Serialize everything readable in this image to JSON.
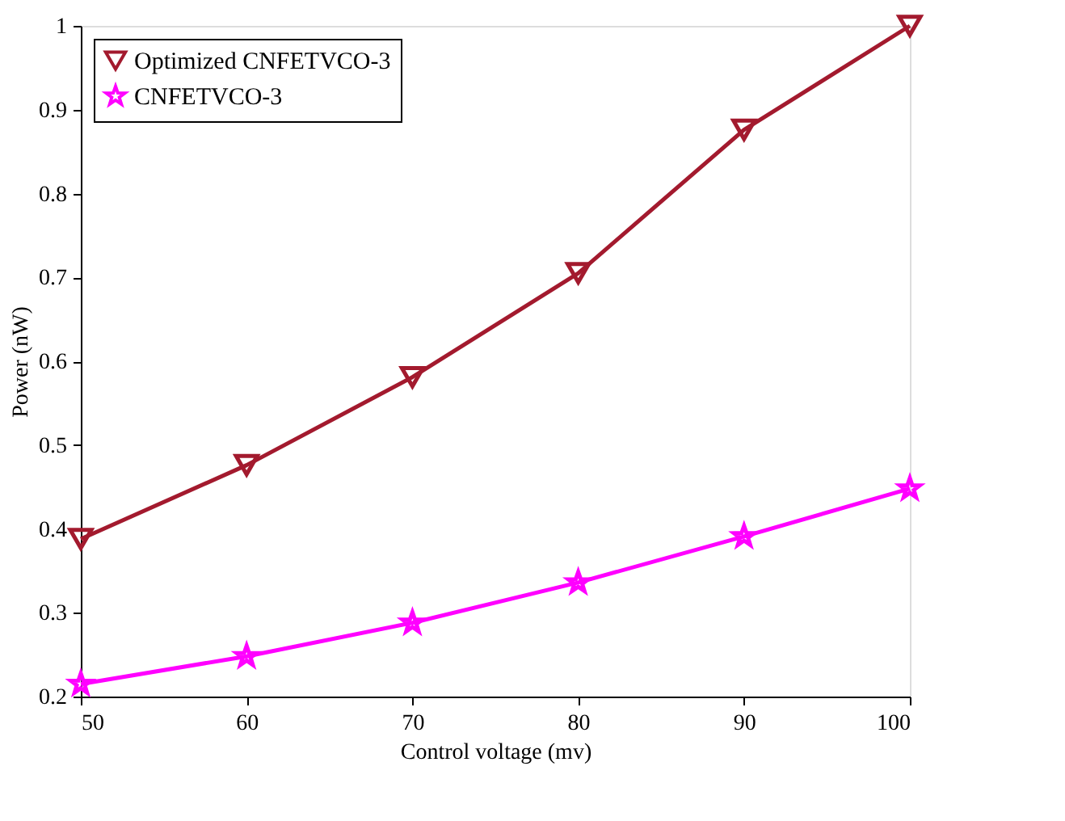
{
  "chart_data": {
    "type": "line",
    "xlabel": "Control voltage (mv)",
    "ylabel": "Power (nW)",
    "x": [
      50,
      60,
      70,
      80,
      90,
      100
    ],
    "series": [
      {
        "name": "Optimized CNFETVCO-3",
        "color": "#a31a2e",
        "marker": "triangle",
        "values": [
          0.388,
          0.476,
          0.581,
          0.705,
          0.876,
          1.0
        ]
      },
      {
        "name": "CNFETVCO-3",
        "color": "#ff00ff",
        "marker": "star",
        "values": [
          0.215,
          0.248,
          0.288,
          0.336,
          0.391,
          0.448
        ]
      }
    ],
    "xlim": [
      50,
      100
    ],
    "xticks": [
      50,
      60,
      70,
      80,
      90,
      100
    ],
    "ylim": [
      0.2,
      1
    ],
    "yticks": [
      0.2,
      0.3,
      0.4,
      0.5,
      0.6,
      0.7,
      0.8,
      0.9,
      1
    ],
    "grid": false,
    "legend": "top left",
    "line_style": "solid"
  }
}
